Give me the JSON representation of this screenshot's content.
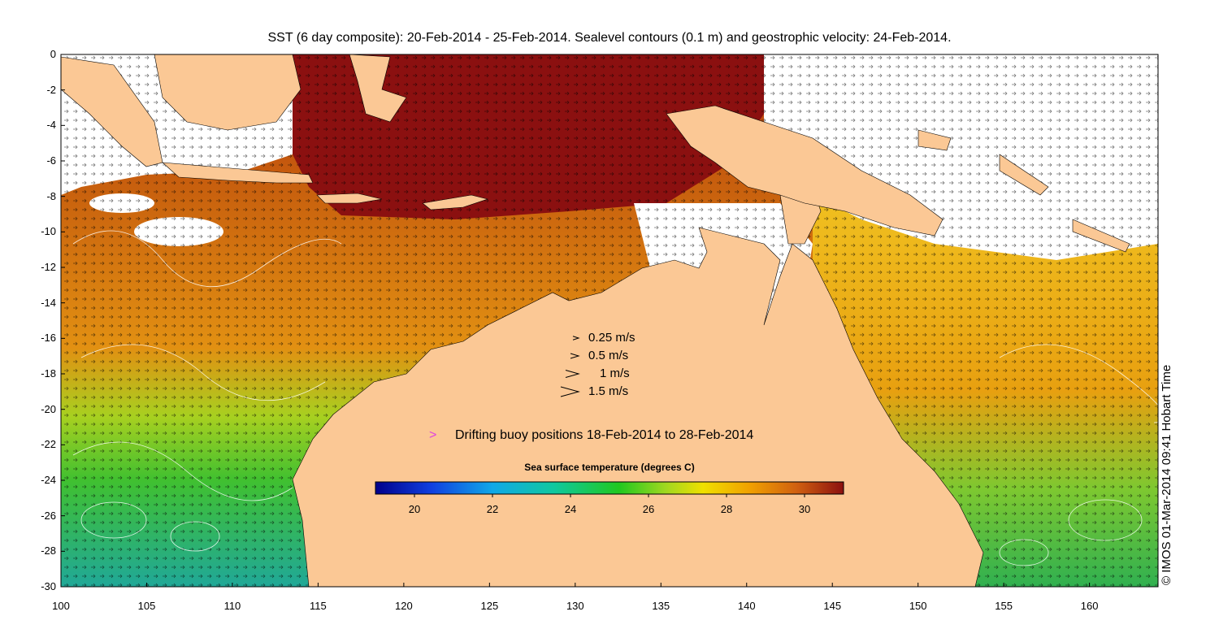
{
  "title": "SST (6 day composite): 20-Feb-2014 - 25-Feb-2014. Sealevel contours (0.1 m) and geostrophic velocity: 24-Feb-2014.",
  "credit": "© IMOS 01-Mar-2014 09:41 Hobart Time",
  "axes": {
    "x_ticks": [
      "100",
      "105",
      "110",
      "115",
      "120",
      "125",
      "130",
      "135",
      "140",
      "145",
      "150",
      "155",
      "160"
    ],
    "y_ticks": [
      "0",
      "-2",
      "-4",
      "-6",
      "-8",
      "-10",
      "-12",
      "-14",
      "-16",
      "-18",
      "-20",
      "-22",
      "-24",
      "-26",
      "-28",
      "-30"
    ],
    "lon_range": [
      100,
      164
    ],
    "lat_range": [
      -30,
      0
    ]
  },
  "velocity_legend": [
    {
      "label": "0.25 m/s",
      "speed": 0.25
    },
    {
      "label": "0.5 m/s",
      "speed": 0.5
    },
    {
      "label": "1 m/s",
      "speed": 1
    },
    {
      "label": "1.5 m/s",
      "speed": 1.5
    }
  ],
  "buoy_legend": {
    "symbol": ">",
    "label": "Drifting buoy positions 18-Feb-2014 to 28-Feb-2014",
    "color": "#e040e0"
  },
  "colorbar": {
    "title": "Sea surface temperature (degrees C)",
    "min": 19,
    "max": 31,
    "ticks": [
      "20",
      "22",
      "24",
      "26",
      "28",
      "30"
    ],
    "tick_values": [
      20,
      22,
      24,
      26,
      28,
      30
    ]
  },
  "colors": {
    "land": "#fbc895",
    "ocean_hot": "#8b1010",
    "ocean_warm": "#c8600e",
    "ocean_mid": "#e8a010",
    "ocean_cool": "#40c030"
  }
}
